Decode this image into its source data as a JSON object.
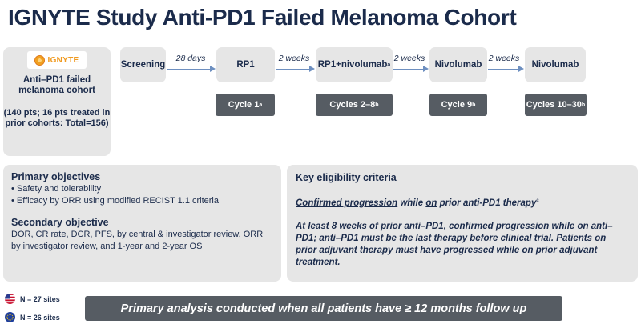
{
  "title": "IGNYTE Study Anti-PD1 Failed Melanoma Cohort",
  "cohort": {
    "logo_text": "IGNYTE",
    "title": "Anti–PD1 failed melanoma cohort",
    "sub": "(140 pts; 16 pts treated in prior cohorts: Total=156)"
  },
  "steps": {
    "screening": "Screening",
    "rp1": "RP1",
    "rp1_nivo": "RP1+nivolumab",
    "rp1_nivo_sup": "a",
    "nivo1": "Nivolumab",
    "nivo2": "Nivolumab"
  },
  "arrows": [
    "28 days",
    "2 weeks",
    "2 weeks",
    "2 weeks"
  ],
  "cycles": {
    "c1": "Cycle 1",
    "c1_sup": "a",
    "c2": "Cycles 2–8",
    "c2_sup": "b",
    "c3": "Cycle 9",
    "c3_sup": "b",
    "c4": "Cycles 10–30",
    "c4_sup": "b"
  },
  "objectives": {
    "primary_heading": "Primary objectives",
    "primary_items": [
      "Safety and tolerability",
      "Efficacy by ORR using modified RECIST 1.1 criteria"
    ],
    "secondary_heading": "Secondary objective",
    "secondary_text": "DOR, CR rate, DCR, PFS, by central & investigator review, ORR by investigator review, and 1-year and 2-year OS"
  },
  "eligibility": {
    "heading": "Key eligibility criteria",
    "p1": {
      "u1": "Confirmed progression",
      "t1": " while ",
      "u2": "on",
      "t2": " prior anti-PD1 therapy",
      "sup": "c"
    },
    "p2": {
      "t1": "At least 8 weeks of prior anti–PD1, ",
      "u1": "confirmed progression",
      "t2": " while ",
      "u2": "on",
      "t3": " anti–PD1; anti–PD1 must be the last therapy before clinical trial. Patients on prior adjuvant therapy must have progressed while on prior adjuvant treatment."
    }
  },
  "sites": {
    "us": "N = 27 sites",
    "eu": "N = 26 sites"
  },
  "banner": "Primary analysis conducted when all patients have ≥ 12 months follow up",
  "colors": {
    "navy": "#1b2b4b",
    "box_gray": "#e6e6e6",
    "dark_gray": "#565c63",
    "arrow_blue": "#6d8fc0",
    "logo_orange": "#f09a20"
  }
}
